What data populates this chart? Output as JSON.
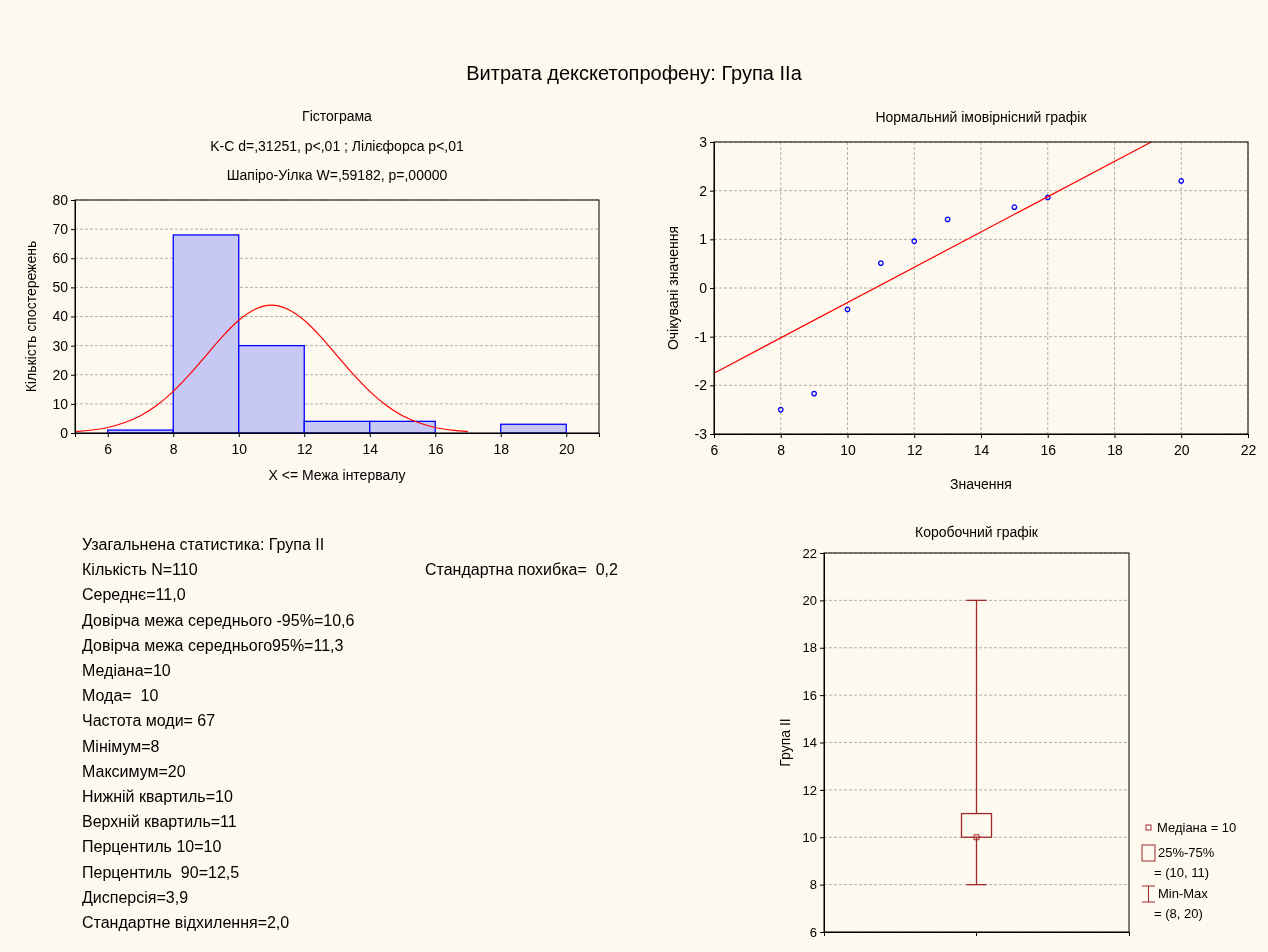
{
  "chart_data": [
    {
      "type": "other",
      "title": "Витрата декскетопрофену: Група IIa"
    },
    {
      "type": "histogram",
      "title": "Гістограма",
      "subtitle": "K-C d=,31251, p<,01 ; Лілієфорса p<,01",
      "annotations": [
        "Шапіро-Уілка W=,59182, p=,00000"
      ],
      "xlabel": "X <= Межа інтервалу",
      "ylabel": "Кількість спостережень",
      "bins": [
        6,
        8,
        10,
        12,
        14,
        16,
        18,
        20
      ],
      "values": [
        1,
        68,
        30,
        4,
        4,
        0,
        3
      ],
      "color": "#c8c8f4",
      "xlim": [
        5,
        21
      ],
      "xticks": [
        6,
        8,
        10,
        12,
        14,
        16,
        18,
        20
      ],
      "ylim": [
        0,
        80
      ],
      "yticks": [
        0,
        10,
        20,
        30,
        40,
        50,
        60,
        70,
        80
      ],
      "grid": "y",
      "series": [
        {
          "type": "line",
          "color": "#ff0000",
          "x": [
            5,
            6,
            6.5,
            7,
            7.5,
            8,
            8.5,
            9,
            9.5,
            10,
            10.5,
            11,
            11.5,
            12,
            12.5,
            13,
            13.5,
            14,
            14.5,
            15,
            15.5,
            16,
            16.5,
            17
          ],
          "values": [
            0.5,
            1.9,
            3.5,
            5.9,
            9.5,
            14.3,
            20.1,
            26.6,
            33.1,
            38.7,
            42.5,
            43.9,
            42.5,
            38.7,
            33.1,
            26.6,
            20.1,
            14.3,
            9.5,
            5.9,
            3.5,
            1.9,
            1.0,
            0.5
          ]
        }
      ]
    },
    {
      "type": "scatter",
      "title": "Нормальний імовірнісний графік",
      "xlabel": "Значення",
      "ylabel": "Очікувані значення",
      "xlim": [
        6,
        22
      ],
      "xticks": [
        6,
        8,
        10,
        12,
        14,
        16,
        18,
        20,
        22
      ],
      "ylim": [
        -3,
        3
      ],
      "yticks": [
        -3,
        -2,
        -1,
        0,
        1,
        2,
        3
      ],
      "grid": true,
      "series": [
        {
          "type": "scatter",
          "marker": "circle",
          "color": "#0000ff",
          "x": [
            8,
            9,
            10,
            11,
            12,
            13,
            15,
            16,
            20
          ],
          "values": [
            -2.5,
            -2.17,
            -0.44,
            0.51,
            0.96,
            1.41,
            1.66,
            1.86,
            2.2
          ]
        },
        {
          "type": "line",
          "color": "#ff0000",
          "x": [
            6,
            19.1
          ],
          "values": [
            -1.75,
            3
          ]
        }
      ]
    },
    {
      "type": "other",
      "title": "Узагальнена статистика: Група II",
      "annotations": [
        "Кількість N=110",
        "Стандартна похибка=  0,2",
        "Середнє=11,0",
        "Довірча межа середнього -95%=10,6",
        "Довірча межа середнього95%=11,3",
        "Медіана=10",
        "Мода=  10",
        "Частота моди= 67",
        "Мінімум=8",
        "Максимум=20",
        "Нижній квартиль=10",
        "Верхній квартиль=11",
        "Перцентиль 10=10",
        "Перцентиль  90=12,5",
        "Дисперсія=3,9",
        "Стандартне відхилення=2,0"
      ]
    },
    {
      "type": "box",
      "title": "Коробочний графік",
      "ylabel": "Група II",
      "categories": [
        null
      ],
      "color": "#a0282a",
      "boxes": [
        {
          "low": 8,
          "q1": 10,
          "median": 10,
          "q3": 11,
          "high": 20
        }
      ],
      "ylim": [
        6,
        22
      ],
      "yticks": [
        6,
        8,
        10,
        12,
        14,
        16,
        18,
        20,
        22
      ],
      "grid": "y",
      "annotations": [
        "Медіана = 10",
        "25%-75%",
        "= (10, 11)",
        "Min-Max",
        "= (8, 20)"
      ]
    }
  ]
}
